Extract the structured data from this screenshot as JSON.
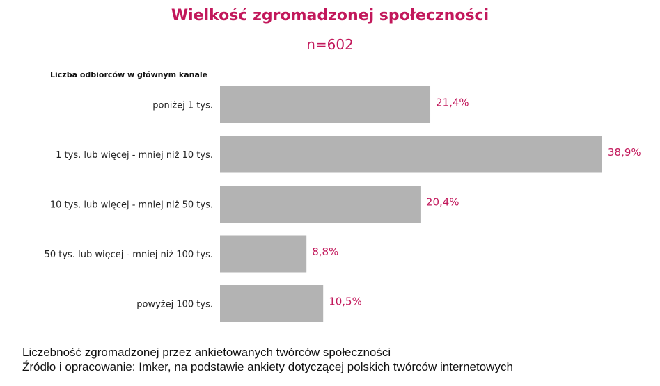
{
  "chart_data": {
    "type": "bar",
    "orientation": "horizontal",
    "title": "Wielkość zgromadzonej społeczności",
    "subtitle": "n=602",
    "ylabel": "Liczba odbiorców w głównym kanale",
    "categories": [
      "poniżej 1 tys.",
      "1 tys. lub więcej - mniej niż 10 tys.",
      "10 tys. lub więcej - mniej niż 50 tys.",
      "50 tys. lub więcej - mniej niż 100 tys.",
      "powyżej 100 tys."
    ],
    "values": [
      21.4,
      38.9,
      20.4,
      8.8,
      10.5
    ],
    "value_labels": [
      "21,4%",
      "38,9%",
      "20,4%",
      "8,8%",
      "10,5%"
    ],
    "xlim": [
      0,
      38.9
    ],
    "grid": false,
    "legend": "none",
    "colors": {
      "bar": "#b3b3b3",
      "value_label": "#c2185b",
      "title": "#c2185b"
    }
  },
  "footer": {
    "line1": "Liczebność zgromadzonej przez ankietowanych twórców społeczności",
    "line2": "Źródło i opracowanie: Imker, na podstawie ankiety dotyczącej polskich twórców internetowych"
  }
}
